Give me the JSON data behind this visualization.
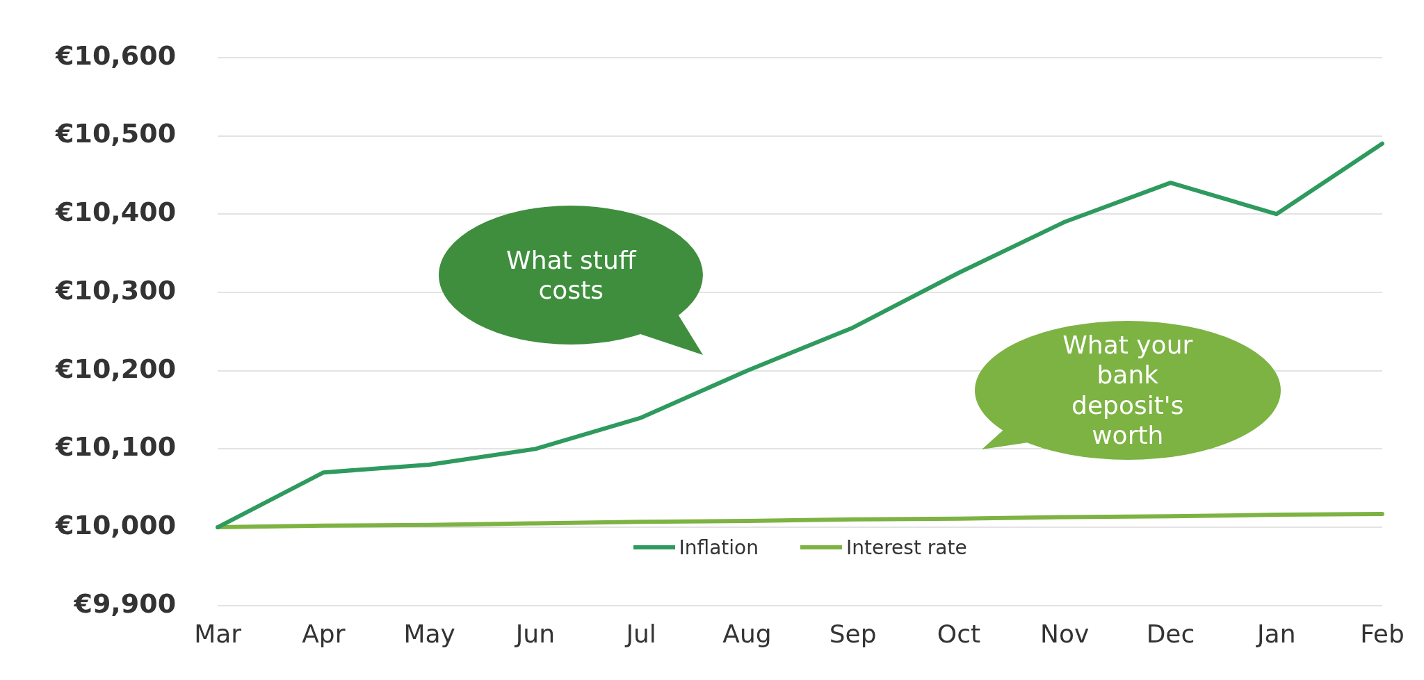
{
  "chart_data": {
    "type": "line",
    "categories": [
      "Mar",
      "Apr",
      "May",
      "Jun",
      "Jul",
      "Aug",
      "Sep",
      "Oct",
      "Nov",
      "Dec",
      "Jan",
      "Feb"
    ],
    "series": [
      {
        "name": "Inflation",
        "color": "#2e9a5e",
        "values": [
          10000,
          10070,
          10080,
          10100,
          10140,
          10200,
          10255,
          10325,
          10390,
          10440,
          10400,
          10490
        ]
      },
      {
        "name": "Interest rate",
        "color": "#7cb342",
        "values": [
          10000,
          10002,
          10003,
          10005,
          10007,
          10008,
          10010,
          10011,
          10013,
          10014,
          10016,
          10017
        ]
      }
    ],
    "ylim": [
      9900,
      10600
    ],
    "yticks": [
      {
        "value": 9900,
        "label": "€9,900"
      },
      {
        "value": 10000,
        "label": "€10,000"
      },
      {
        "value": 10100,
        "label": "€10,100"
      },
      {
        "value": 10200,
        "label": "€10,200"
      },
      {
        "value": 10300,
        "label": "€10,300"
      },
      {
        "value": 10400,
        "label": "€10,400"
      },
      {
        "value": 10500,
        "label": "€10,500"
      },
      {
        "value": 10600,
        "label": "€10,600"
      }
    ],
    "grid": "y",
    "legend": "bottom",
    "marker": "none",
    "line_style": "solid",
    "annotations": [
      "What stuff costs",
      "What your bank deposit's worth"
    ]
  }
}
